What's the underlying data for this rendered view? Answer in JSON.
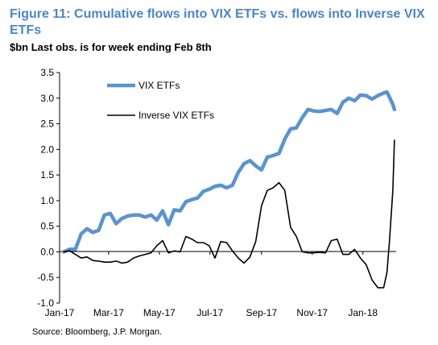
{
  "header": {
    "title": "Figure 11: Cumulative flows into VIX ETFs vs. flows into Inverse VIX ETFs",
    "subtitle": "$bn Last obs. is for week ending Feb 8th"
  },
  "footer": {
    "source": "Source: Bloomberg, J.P. Morgan."
  },
  "chart_data": {
    "type": "line",
    "title": "Figure 11: Cumulative flows into VIX ETFs vs. flows into Inverse VIX ETFs",
    "subtitle": "$bn Last obs. is for week ending Feb 8th",
    "xlabel": "",
    "ylabel": "",
    "ylim": [
      -1.0,
      3.5
    ],
    "y_ticks": [
      -1.0,
      -0.5,
      0.0,
      0.5,
      1.0,
      1.5,
      2.0,
      2.5,
      3.0,
      3.5
    ],
    "y_tick_labels": [
      "-1.0",
      "-0.5",
      "0.0",
      "0.5",
      "1.0",
      "1.5",
      "2.0",
      "2.5",
      "3.0",
      "3.5"
    ],
    "x_ticks": [
      "2017-01-01",
      "2017-03-01",
      "2017-05-01",
      "2017-07-01",
      "2017-09-01",
      "2017-11-01",
      "2018-01-01"
    ],
    "x_tick_labels": [
      "Jan-17",
      "Mar-17",
      "May-17",
      "Jul-17",
      "Sep-17",
      "Nov-17",
      "Jan-18"
    ],
    "xlim": [
      "2017-01-01",
      "2018-02-10"
    ],
    "grid": false,
    "legend_placement": "top-left",
    "series": [
      {
        "name": "VIX ETFs",
        "color": "#5b93cf",
        "points": [
          [
            "2017-01-06",
            0.0
          ],
          [
            "2017-01-13",
            0.05
          ],
          [
            "2017-01-20",
            0.05
          ],
          [
            "2017-01-27",
            0.35
          ],
          [
            "2017-02-03",
            0.45
          ],
          [
            "2017-02-10",
            0.38
          ],
          [
            "2017-02-17",
            0.42
          ],
          [
            "2017-02-24",
            0.72
          ],
          [
            "2017-03-03",
            0.75
          ],
          [
            "2017-03-10",
            0.55
          ],
          [
            "2017-03-17",
            0.65
          ],
          [
            "2017-03-24",
            0.7
          ],
          [
            "2017-03-31",
            0.72
          ],
          [
            "2017-04-07",
            0.72
          ],
          [
            "2017-04-14",
            0.68
          ],
          [
            "2017-04-21",
            0.72
          ],
          [
            "2017-04-28",
            0.62
          ],
          [
            "2017-05-05",
            0.8
          ],
          [
            "2017-05-12",
            0.53
          ],
          [
            "2017-05-19",
            0.82
          ],
          [
            "2017-05-26",
            0.8
          ],
          [
            "2017-06-02",
            0.98
          ],
          [
            "2017-06-09",
            1.02
          ],
          [
            "2017-06-16",
            1.05
          ],
          [
            "2017-06-23",
            1.18
          ],
          [
            "2017-06-30",
            1.22
          ],
          [
            "2017-07-07",
            1.28
          ],
          [
            "2017-07-14",
            1.3
          ],
          [
            "2017-07-21",
            1.25
          ],
          [
            "2017-07-28",
            1.3
          ],
          [
            "2017-08-04",
            1.55
          ],
          [
            "2017-08-11",
            1.72
          ],
          [
            "2017-08-18",
            1.78
          ],
          [
            "2017-08-25",
            1.68
          ],
          [
            "2017-09-01",
            1.6
          ],
          [
            "2017-09-08",
            1.85
          ],
          [
            "2017-09-15",
            1.88
          ],
          [
            "2017-09-22",
            1.92
          ],
          [
            "2017-09-29",
            2.2
          ],
          [
            "2017-10-06",
            2.4
          ],
          [
            "2017-10-13",
            2.42
          ],
          [
            "2017-10-20",
            2.62
          ],
          [
            "2017-10-27",
            2.78
          ],
          [
            "2017-11-03",
            2.75
          ],
          [
            "2017-11-10",
            2.74
          ],
          [
            "2017-11-17",
            2.76
          ],
          [
            "2017-11-24",
            2.78
          ],
          [
            "2017-12-01",
            2.7
          ],
          [
            "2017-12-08",
            2.92
          ],
          [
            "2017-12-15",
            3.0
          ],
          [
            "2017-12-22",
            2.95
          ],
          [
            "2017-12-29",
            3.06
          ],
          [
            "2018-01-05",
            3.05
          ],
          [
            "2018-01-12",
            2.98
          ],
          [
            "2018-01-19",
            3.05
          ],
          [
            "2018-01-26",
            3.1
          ],
          [
            "2018-01-30",
            3.12
          ],
          [
            "2018-02-02",
            3.02
          ],
          [
            "2018-02-06",
            2.88
          ],
          [
            "2018-02-08",
            2.78
          ]
        ]
      },
      {
        "name": "Inverse VIX ETFs",
        "color": "#000000",
        "points": [
          [
            "2017-01-06",
            0.0
          ],
          [
            "2017-01-13",
            0.02
          ],
          [
            "2017-01-20",
            -0.05
          ],
          [
            "2017-01-27",
            -0.12
          ],
          [
            "2017-02-03",
            -0.1
          ],
          [
            "2017-02-10",
            -0.17
          ],
          [
            "2017-02-17",
            -0.18
          ],
          [
            "2017-02-24",
            -0.2
          ],
          [
            "2017-03-03",
            -0.2
          ],
          [
            "2017-03-10",
            -0.18
          ],
          [
            "2017-03-17",
            -0.22
          ],
          [
            "2017-03-24",
            -0.2
          ],
          [
            "2017-03-31",
            -0.12
          ],
          [
            "2017-04-07",
            -0.08
          ],
          [
            "2017-04-14",
            -0.05
          ],
          [
            "2017-04-21",
            -0.02
          ],
          [
            "2017-04-28",
            0.12
          ],
          [
            "2017-05-05",
            0.22
          ],
          [
            "2017-05-12",
            -0.02
          ],
          [
            "2017-05-19",
            0.02
          ],
          [
            "2017-05-26",
            0.0
          ],
          [
            "2017-06-02",
            0.3
          ],
          [
            "2017-06-09",
            0.25
          ],
          [
            "2017-06-16",
            0.18
          ],
          [
            "2017-06-23",
            0.18
          ],
          [
            "2017-06-30",
            0.12
          ],
          [
            "2017-07-07",
            -0.12
          ],
          [
            "2017-07-14",
            0.2
          ],
          [
            "2017-07-21",
            0.18
          ],
          [
            "2017-07-28",
            0.02
          ],
          [
            "2017-08-04",
            -0.12
          ],
          [
            "2017-08-11",
            -0.22
          ],
          [
            "2017-08-18",
            -0.1
          ],
          [
            "2017-08-25",
            0.2
          ],
          [
            "2017-09-01",
            0.9
          ],
          [
            "2017-09-08",
            1.2
          ],
          [
            "2017-09-15",
            1.25
          ],
          [
            "2017-09-22",
            1.35
          ],
          [
            "2017-09-29",
            1.2
          ],
          [
            "2017-10-06",
            0.48
          ],
          [
            "2017-10-13",
            0.3
          ],
          [
            "2017-10-20",
            0.0
          ],
          [
            "2017-10-27",
            -0.02
          ],
          [
            "2017-11-03",
            -0.02
          ],
          [
            "2017-11-10",
            -0.01
          ],
          [
            "2017-11-17",
            -0.02
          ],
          [
            "2017-11-24",
            0.22
          ],
          [
            "2017-12-01",
            0.25
          ],
          [
            "2017-12-08",
            -0.05
          ],
          [
            "2017-12-15",
            -0.05
          ],
          [
            "2017-12-22",
            0.05
          ],
          [
            "2017-12-29",
            -0.12
          ],
          [
            "2018-01-05",
            -0.25
          ],
          [
            "2018-01-12",
            -0.55
          ],
          [
            "2018-01-19",
            -0.7
          ],
          [
            "2018-01-26",
            -0.7
          ],
          [
            "2018-01-30",
            -0.4
          ],
          [
            "2018-02-02",
            0.2
          ],
          [
            "2018-02-06",
            1.2
          ],
          [
            "2018-02-08",
            2.18
          ]
        ]
      }
    ]
  }
}
